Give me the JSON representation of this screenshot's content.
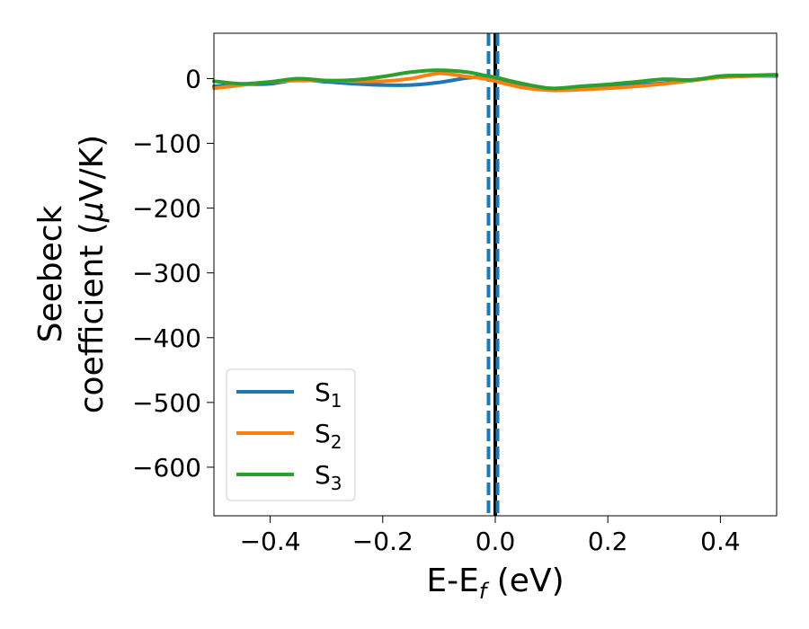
{
  "chart_data": {
    "type": "line",
    "title": "",
    "xlabel": {
      "main": "E-E",
      "sub": "f",
      "suffix": " (eV)"
    },
    "ylabel": {
      "line1": "Seebeck",
      "line2": "coefficient  (",
      "mu": "μ",
      "line2_suffix": "V/K)"
    },
    "xlim": [
      -0.5,
      0.5
    ],
    "ylim": [
      -675,
      70
    ],
    "x_ticks": [
      -0.4,
      -0.2,
      0.0,
      0.2,
      0.4
    ],
    "x_tick_labels": [
      "−0.4",
      "−0.2",
      "0.0",
      "0.2",
      "0.4"
    ],
    "y_ticks": [
      0,
      -100,
      -200,
      -300,
      -400,
      -500,
      -600
    ],
    "y_tick_labels": [
      "0",
      "−100",
      "−200",
      "−300",
      "−400",
      "−500",
      "−600"
    ],
    "legend_position": "lower-left",
    "vlines": [
      {
        "x": 0.0,
        "style": "solid",
        "color": "#000000"
      },
      {
        "x": -0.012,
        "style": "dashed",
        "color": "#1f77b4"
      },
      {
        "x": 0.004,
        "style": "dashed",
        "color": "#1f77b4"
      }
    ],
    "series": [
      {
        "name": "S",
        "sub": "1",
        "color": "#1f77b4",
        "x": [
          -0.5,
          -0.45,
          -0.4,
          -0.35,
          -0.3,
          -0.25,
          -0.2,
          -0.15,
          -0.1,
          -0.05,
          -0.02,
          0.0,
          0.05,
          0.1,
          0.15,
          0.2,
          0.25,
          0.3,
          0.35,
          0.4,
          0.45,
          0.5
        ],
        "y": [
          -12,
          -9,
          -8,
          -2,
          -5,
          -8,
          -10,
          -10,
          -6,
          1,
          2,
          -2,
          -10,
          -18,
          -16,
          -14,
          -10,
          -7,
          -2,
          2,
          4,
          4
        ]
      },
      {
        "name": "S",
        "sub": "2",
        "color": "#ff7f0e",
        "x": [
          -0.5,
          -0.45,
          -0.4,
          -0.35,
          -0.3,
          -0.25,
          -0.2,
          -0.15,
          -0.1,
          -0.05,
          -0.02,
          0.0,
          0.05,
          0.1,
          0.15,
          0.2,
          0.25,
          0.3,
          0.35,
          0.4,
          0.45,
          0.5
        ],
        "y": [
          -15,
          -10,
          -5,
          -3,
          -3,
          -4,
          -4,
          0,
          8,
          3,
          0,
          -4,
          -14,
          -18,
          -17,
          -15,
          -12,
          -8,
          -3,
          2,
          4,
          5
        ]
      },
      {
        "name": "S",
        "sub": "3",
        "color": "#2ca02c",
        "x": [
          -0.5,
          -0.45,
          -0.4,
          -0.35,
          -0.3,
          -0.25,
          -0.2,
          -0.15,
          -0.1,
          -0.05,
          -0.02,
          0.0,
          0.05,
          0.1,
          0.15,
          0.2,
          0.25,
          0.3,
          0.35,
          0.4,
          0.45,
          0.5
        ],
        "y": [
          -4,
          -8,
          -5,
          0,
          -3,
          -2,
          3,
          10,
          13,
          10,
          5,
          2,
          -8,
          -15,
          -12,
          -9,
          -5,
          -1,
          -2,
          4,
          5,
          6
        ]
      }
    ]
  }
}
